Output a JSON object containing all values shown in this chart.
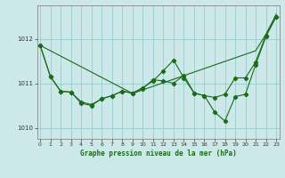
{
  "title": "Graphe pression niveau de la mer (hPa)",
  "background_color": "#cce8e8",
  "grid_color": "#99cccc",
  "line_color": "#1a6b1a",
  "marker_color": "#1a6b1a",
  "xlim": [
    -0.3,
    23.3
  ],
  "ylim": [
    1009.75,
    1012.75
  ],
  "yticks": [
    1010,
    1011,
    1012
  ],
  "xticks": [
    0,
    1,
    2,
    3,
    4,
    5,
    6,
    7,
    8,
    9,
    10,
    11,
    12,
    13,
    14,
    15,
    16,
    17,
    18,
    19,
    20,
    21,
    22,
    23
  ],
  "series_straight": [
    1011.85,
    1011.73,
    1011.61,
    1011.49,
    1011.37,
    1011.25,
    1011.13,
    1011.01,
    1010.89,
    1010.77,
    1010.85,
    1010.93,
    1011.01,
    1011.09,
    1011.17,
    1011.25,
    1011.33,
    1011.41,
    1011.49,
    1011.57,
    1011.65,
    1011.73,
    1012.1,
    1012.55
  ],
  "series_zigzag1": [
    1011.85,
    1011.15,
    1010.82,
    1010.8,
    1010.58,
    1010.52,
    1010.65,
    1010.72,
    1010.82,
    1010.78,
    1010.88,
    1011.08,
    1011.05,
    1011.0,
    1011.18,
    1010.78,
    1010.72,
    1010.68,
    1010.75,
    1011.12,
    1011.12,
    1011.48,
    1012.08,
    1012.5
  ],
  "series_zigzag2": [
    1011.85,
    1011.15,
    1010.82,
    1010.8,
    1010.55,
    1010.5,
    1010.65,
    1010.72,
    1010.82,
    1010.78,
    1010.9,
    1011.05,
    1011.28,
    1011.52,
    1011.12,
    1010.78,
    1010.72,
    1010.35,
    1010.15,
    1010.7,
    1010.75,
    1011.42,
    1012.05,
    1012.5
  ]
}
